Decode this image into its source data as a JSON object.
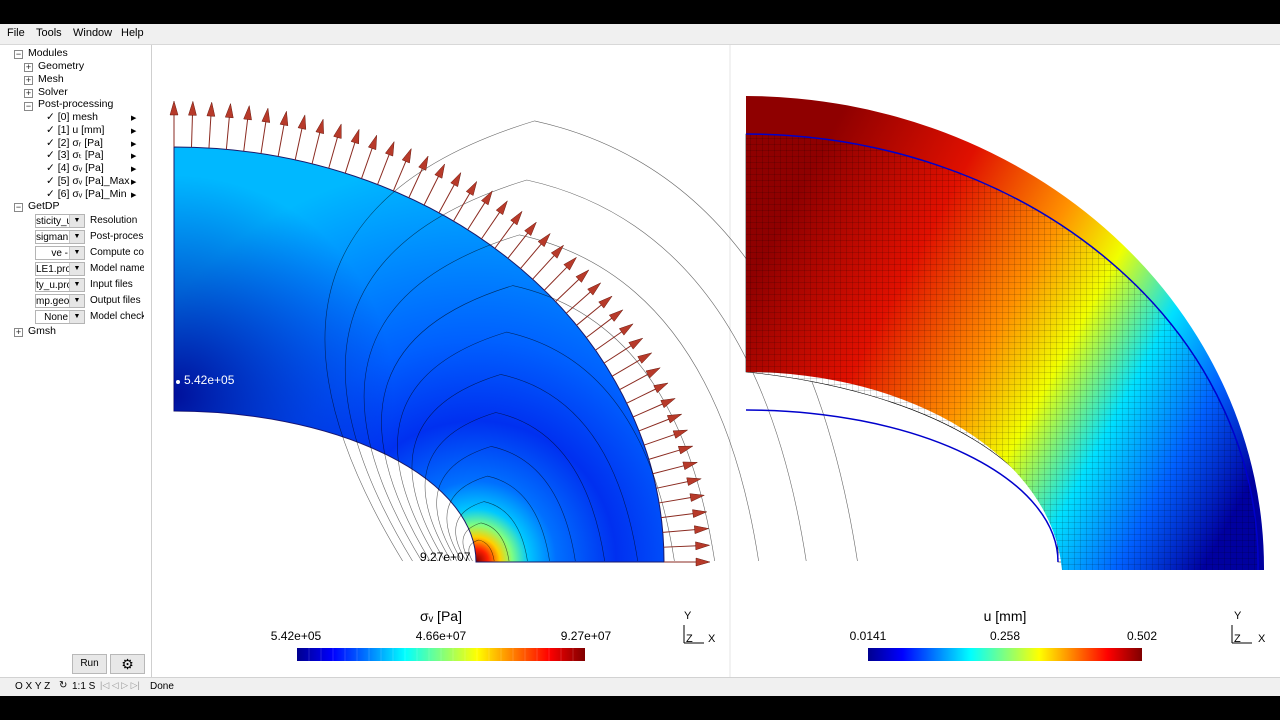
{
  "menu": [
    "File",
    "Tools",
    "Window",
    "Help"
  ],
  "tree": {
    "modules": "Modules",
    "geometry": "Geometry",
    "mesh": "Mesh",
    "solver": "Solver",
    "postprocessing": "Post-processing",
    "views": [
      "[0] mesh",
      "[1] u [mm]",
      "[2] σᵣ [Pa]",
      "[3] σₜ [Pa]",
      "[4] σᵥ [Pa]",
      "[5] σᵥ [Pa]_Max",
      "[6] σᵥ [Pa]_Min"
    ],
    "getdp": "GetDP",
    "getdp_rows": [
      {
        "value": "sticity_u",
        "label": "Resolution"
      },
      {
        "value": "sigman",
        "label": "Post-proces"
      },
      {
        "value": "ve -pos",
        "label": "Compute co"
      },
      {
        "value": "LE1.pro",
        "label": "Model name"
      },
      {
        "value": "ty_u.pro",
        "label": "Input files"
      },
      {
        "value": "mp.geo",
        "label": "Output files"
      },
      {
        "value": "None",
        "label": "Model check"
      }
    ],
    "gmsh": "Gmsh"
  },
  "buttons": {
    "run": "Run"
  },
  "status": {
    "axes": "O X Y Z",
    "scale": "1:1 S",
    "text": "Done"
  },
  "plots": {
    "left": {
      "title": "σᵥ [Pa]",
      "min_label": "5.42e+05",
      "mid_label": "4.66e+07",
      "max_label": "9.27e+07",
      "annot_min": "5.42e+05",
      "annot_max": "9.27e+07"
    },
    "right": {
      "title": "u [mm]",
      "min_label": "0.0141",
      "mid_label": "0.258",
      "max_label": "0.502"
    },
    "axes": {
      "y": "Y",
      "z": "Z",
      "x": "X"
    }
  },
  "colors": {
    "jet_low": "#00008f",
    "jet_high": "#7f0000",
    "arrow": "#b73a2a"
  }
}
